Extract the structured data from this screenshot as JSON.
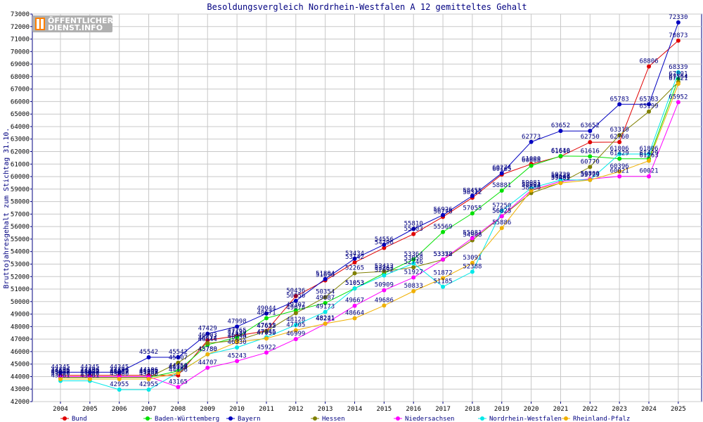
{
  "logo": {
    "line1": "ÖFFENTLICHER",
    "line2": "DIENST.INFO"
  },
  "chart_data": {
    "type": "line",
    "title": "Besoldungsvergleich Nordrhein-Westfalen A 12 gemitteltes Gehalt",
    "xlabel": "",
    "ylabel": "Bruttojahresgehalt zum Stichtag 31.10.",
    "ylim": [
      42000,
      73000
    ],
    "ytick_step": 1000,
    "grid": true,
    "legend_position": "bottom",
    "categories": [
      "2004",
      "2005",
      "2006",
      "2007",
      "2008",
      "2009",
      "2010",
      "2011",
      "2012",
      "2013",
      "2014",
      "2015",
      "2016",
      "2017",
      "2018",
      "2019",
      "2020",
      "2021",
      "2022",
      "2023",
      "2024",
      "2025"
    ],
    "series": [
      {
        "name": "Bund",
        "color": "#e00000",
        "values": [
          44106,
          44106,
          44106,
          44106,
          44106,
          46903,
          47265,
          47652,
          50436,
          51696,
          53142,
          54296,
          55403,
          56778,
          58312,
          60165,
          61000,
          61616,
          62750,
          62760,
          68806,
          70873
        ]
      },
      {
        "name": "Baden-Württemberg",
        "color": "#00e000",
        "values": [
          43937,
          43937,
          43937,
          43937,
          44450,
          46544,
          47130,
          48671,
          49307,
          49887,
          51053,
          52262,
          53364,
          55569,
          57055,
          58881,
          60868,
          61640,
          61616,
          61429,
          61429,
          67801
        ]
      },
      {
        "name": "Bayern",
        "color": "#0000c0",
        "values": [
          44345,
          44345,
          44345,
          45542,
          45542,
          47429,
          47998,
          49044,
          50056,
          51804,
          53434,
          54556,
          55810,
          56926,
          58455,
          60274,
          62773,
          63652,
          63652,
          65783,
          65783,
          72330
        ]
      },
      {
        "name": "Hessen",
        "color": "#808000",
        "values": [
          43937,
          43937,
          43937,
          43937,
          45107,
          46674,
          46884,
          47635,
          49078,
          50354,
          52265,
          52412,
          52746,
          53358,
          54908,
          56825,
          58680,
          59499,
          60770,
          63310,
          65199,
          67564
        ]
      },
      {
        "name": "Niedersachsen",
        "color": "#ff00ff",
        "values": [
          44000,
          44000,
          44000,
          44000,
          43165,
          44707,
          45243,
          45922,
          46999,
          48221,
          49667,
          50909,
          51927,
          53372,
          55081,
          56825,
          58902,
          59622,
          59800,
          60021,
          60021,
          65952
        ]
      },
      {
        "name": "Nordrhein-Westfalen",
        "color": "#00e8e8",
        "values": [
          43661,
          43661,
          42955,
          42955,
          44325,
          45780,
          46330,
          47145,
          48128,
          49173,
          51053,
          52092,
          53058,
          51185,
          52388,
          57250,
          59081,
          59729,
          59729,
          61806,
          61806,
          68339
        ]
      },
      {
        "name": "Rheinland-Pfalz",
        "color": "#f0b000",
        "values": [
          43800,
          43800,
          43800,
          43800,
          44300,
          45780,
          46750,
          47050,
          47705,
          48241,
          48664,
          49686,
          50833,
          51872,
          53091,
          55886,
          58894,
          59482,
          59729,
          60396,
          61263,
          67421
        ]
      }
    ]
  }
}
